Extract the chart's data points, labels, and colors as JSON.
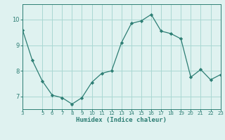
{
  "x": [
    3,
    4,
    5,
    6,
    7,
    8,
    9,
    10,
    11,
    12,
    13,
    14,
    15,
    16,
    17,
    18,
    19,
    20,
    21,
    22,
    23
  ],
  "y": [
    9.6,
    8.4,
    7.6,
    7.05,
    6.95,
    6.7,
    6.95,
    7.55,
    7.9,
    8.0,
    9.1,
    9.85,
    9.95,
    10.2,
    9.55,
    9.45,
    9.25,
    7.75,
    8.05,
    7.65,
    7.85
  ],
  "line_color": "#2d7e74",
  "marker_color": "#2d7e74",
  "bg_color": "#dff2f0",
  "grid_color": "#aad8d3",
  "xlabel": "Humidex (Indice chaleur)",
  "xlabel_color": "#2d7e74",
  "tick_color": "#2d7e74",
  "spine_color": "#2d7e74",
  "xlim": [
    3,
    23
  ],
  "ylim": [
    6.5,
    10.6
  ],
  "yticks": [
    7,
    8,
    9,
    10
  ],
  "xticks": [
    3,
    5,
    6,
    7,
    8,
    9,
    10,
    11,
    12,
    13,
    14,
    15,
    16,
    17,
    18,
    19,
    20,
    21,
    22,
    23
  ],
  "font_family": "monospace",
  "xlabel_fontsize": 6.5,
  "xtick_fontsize": 5.0,
  "ytick_fontsize": 6.0
}
